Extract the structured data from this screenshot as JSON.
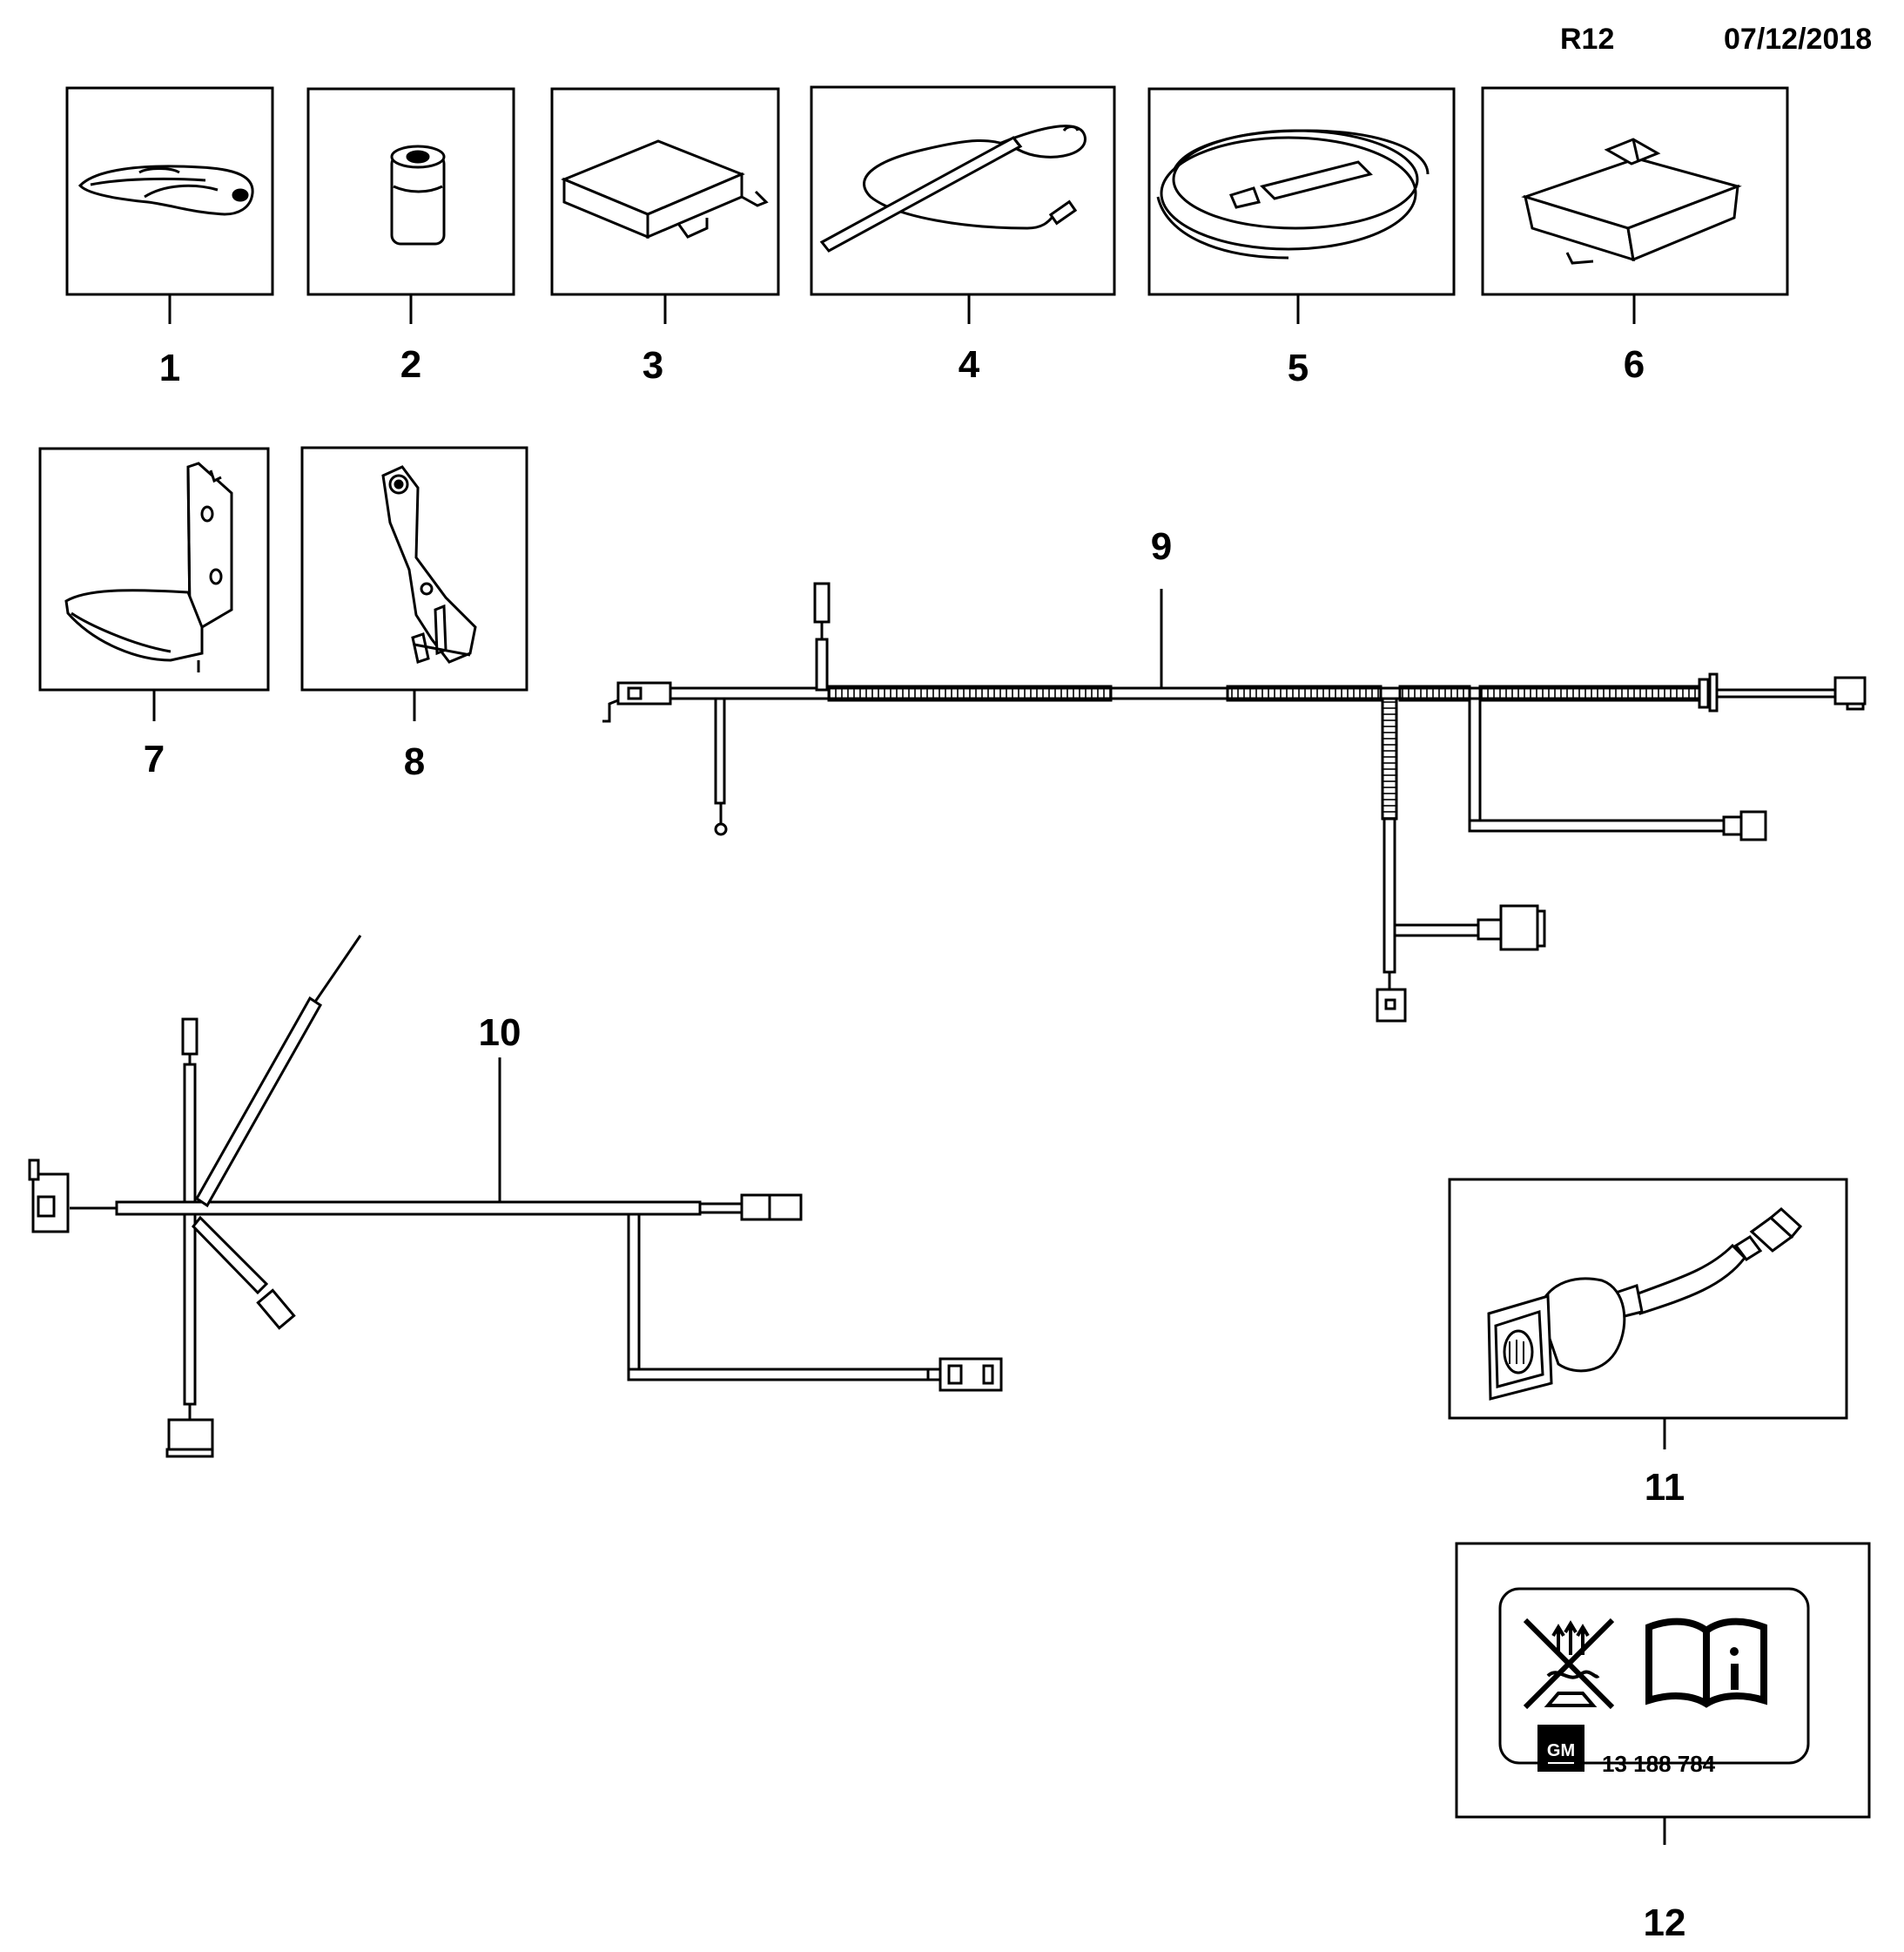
{
  "header": {
    "ref": "R12",
    "date": "07/12/2018"
  },
  "parts": [
    {
      "number": "1"
    },
    {
      "number": "2"
    },
    {
      "number": "3"
    },
    {
      "number": "4"
    },
    {
      "number": "5"
    },
    {
      "number": "6"
    },
    {
      "number": "7"
    },
    {
      "number": "8"
    },
    {
      "number": "9"
    },
    {
      "number": "10"
    },
    {
      "number": "11"
    },
    {
      "number": "12"
    }
  ],
  "label_12": {
    "brand": "GM",
    "part_code": "13 188 784"
  },
  "icons": [
    "keyfob-icon",
    "battery-icon",
    "control-module-icon",
    "antenna-icon",
    "coiled-antenna-icon",
    "sensor-box-icon",
    "bracket-icon",
    "bracket-icon",
    "wiring-harness-icon",
    "wiring-harness-icon",
    "socket-harness-icon",
    "no-water-warning-icon",
    "manual-info-icon",
    "gm-logo-icon"
  ]
}
